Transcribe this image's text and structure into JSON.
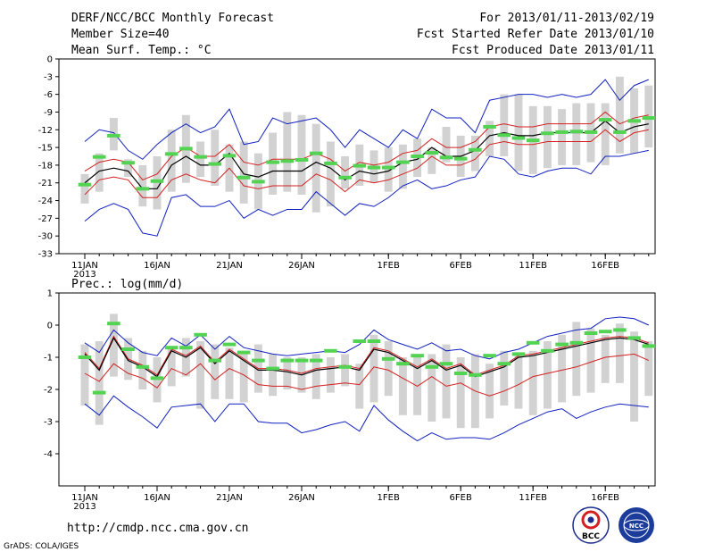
{
  "header": {
    "title": "DERF/NCC/BCC Monthly Forecast",
    "member_size": "Member Size=40",
    "period": "For 2013/01/11-2013/02/19",
    "start_date": "Fcst Started Refer Date 2013/01/10",
    "produced_date": "Fcst Produced Date 2013/01/11"
  },
  "footer": {
    "url": "http://cmdp.ncc.cma.gov.cn",
    "grads": "GrADS: COLA/IGES",
    "logo_bcc": "BCC",
    "logo_ncc": "NCC"
  },
  "colors": {
    "box": "#d2d2d2",
    "observed": "#52d452",
    "ensemble_mean": "#000000",
    "spread": "#d42020",
    "extreme": "#1020c0"
  },
  "chart_data": [
    {
      "type": "line",
      "title": "Mean Surf. Temp.: °C",
      "ylim": [
        -33,
        0
      ],
      "yticks": [
        "0",
        "-3",
        "-6",
        "-9",
        "-12",
        "-15",
        "-18",
        "-21",
        "-24",
        "-27",
        "-30",
        "-33"
      ],
      "ytick_values": [
        0,
        -3,
        -6,
        -9,
        -12,
        -15,
        -18,
        -21,
        -24,
        -27,
        -30,
        -33
      ],
      "xlabel_ticks": [
        {
          "day": 0,
          "label": "11JAN"
        },
        {
          "day": 5,
          "label": "16JAN"
        },
        {
          "day": 10,
          "label": "21JAN"
        },
        {
          "day": 15,
          "label": "26JAN"
        },
        {
          "day": 21,
          "label": "1FEB"
        },
        {
          "day": 26,
          "label": "6FEB"
        },
        {
          "day": 31,
          "label": "11FEB"
        },
        {
          "day": 36,
          "label": "16FEB"
        }
      ],
      "year_label": "2013",
      "days": 40,
      "series": [
        {
          "name": "box_top",
          "values": [
            -19.5,
            -16,
            -10,
            -17,
            -18,
            -16.5,
            -12,
            -9.5,
            -14,
            -12,
            -14.5,
            -14,
            -16,
            -12.5,
            -9,
            -9.5,
            -11,
            -14,
            -16.5,
            -14.5,
            -15.5,
            -15,
            -14.5,
            -13.5,
            -15,
            -11.5,
            -13,
            -13,
            -10.5,
            -6,
            -6,
            -8,
            -8,
            -8.5,
            -7.5,
            -7.5,
            -7.5,
            -3,
            -5,
            -4.5
          ]
        },
        {
          "name": "box_bottom",
          "values": [
            -24.5,
            -22.5,
            -15.5,
            -20,
            -25,
            -25.5,
            -22.5,
            -21,
            -20,
            -21.5,
            -22.5,
            -24.5,
            -25.5,
            -23,
            -22.5,
            -23,
            -26,
            -25,
            -22,
            -21.5,
            -21,
            -22.5,
            -22,
            -20,
            -19.5,
            -17.5,
            -20,
            -19,
            -16.5,
            -16.5,
            -19,
            -19.5,
            -18.5,
            -18,
            -18,
            -17.5,
            -18,
            -16,
            -16,
            -15
          ]
        },
        {
          "name": "observed",
          "values": [
            -21.3,
            -16.6,
            -13.0,
            -17.6,
            -22.0,
            -20.7,
            -16.1,
            -15.2,
            -16.6,
            -17.8,
            -16.4,
            -20.1,
            -20.8,
            -17.5,
            -17.3,
            -17.1,
            -16.0,
            -17.7,
            -20.1,
            -18.1,
            -18.4,
            -18.4,
            -17.5,
            -16.5,
            -15.9,
            -16.7,
            -16.9,
            -15.4,
            -11.5,
            -12.9,
            -13.4,
            -13.8,
            -12.6,
            -12.4,
            -12.3,
            -12.4,
            -10.3,
            -12.4,
            -10.5,
            -10.0
          ]
        },
        {
          "name": "mean",
          "values": [
            -21.0,
            -19.0,
            -18.5,
            -19.0,
            -22.0,
            -22.0,
            -18.0,
            -16.5,
            -18.0,
            -18.0,
            -16.0,
            -19.5,
            -20.0,
            -19.0,
            -19.0,
            -19.0,
            -17.5,
            -18.5,
            -20.5,
            -19.0,
            -19.5,
            -19.0,
            -17.5,
            -17.0,
            -15.0,
            -16.5,
            -16.5,
            -15.5,
            -13.0,
            -12.5,
            -13.0,
            -13.0,
            -12.5,
            -12.5,
            -12.5,
            -12.5,
            -10.5,
            -12.5,
            -11.5,
            -11.0
          ]
        },
        {
          "name": "upper_spread",
          "values": [
            -19.0,
            -17.5,
            -17.0,
            -17.5,
            -20.5,
            -19.5,
            -16.5,
            -15.0,
            -16.5,
            -16.5,
            -14.5,
            -17.5,
            -18.0,
            -17.0,
            -17.0,
            -17.0,
            -16.0,
            -17.0,
            -19.0,
            -17.5,
            -18.0,
            -17.5,
            -16.0,
            -15.5,
            -13.5,
            -15.0,
            -15.0,
            -14.0,
            -11.5,
            -11.0,
            -11.5,
            -11.5,
            -11.0,
            -11.0,
            -11.0,
            -11.0,
            -9.0,
            -11.0,
            -10.0,
            -9.5
          ]
        },
        {
          "name": "lower_spread",
          "values": [
            -23.0,
            -20.5,
            -20.0,
            -20.5,
            -23.5,
            -23.5,
            -20.5,
            -19.5,
            -20.5,
            -21.0,
            -18.5,
            -21.5,
            -22.0,
            -21.5,
            -21.5,
            -21.5,
            -19.5,
            -20.5,
            -22.5,
            -20.5,
            -21.0,
            -20.5,
            -19.5,
            -18.5,
            -16.5,
            -18.0,
            -18.0,
            -17.0,
            -14.5,
            -14.0,
            -14.5,
            -14.5,
            -14.0,
            -14.0,
            -14.0,
            -14.0,
            -12.0,
            -14.0,
            -12.5,
            -12.0
          ]
        },
        {
          "name": "max",
          "values": [
            -14.0,
            -12.0,
            -12.5,
            -15.5,
            -17.0,
            -14.5,
            -12.5,
            -11.0,
            -12.5,
            -11.5,
            -8.5,
            -14.5,
            -14.0,
            -10.0,
            -11.0,
            -10.5,
            -10.0,
            -12.0,
            -15.0,
            -12.0,
            -13.5,
            -15.0,
            -12.0,
            -13.5,
            -8.5,
            -10.0,
            -10.0,
            -12.5,
            -7.0,
            -6.5,
            -6.0,
            -6.0,
            -6.5,
            -6.0,
            -6.5,
            -6.0,
            -3.5,
            -7.0,
            -4.5,
            -3.5
          ]
        },
        {
          "name": "min",
          "values": [
            -27.5,
            -25.5,
            -24.5,
            -25.5,
            -29.5,
            -30.0,
            -23.5,
            -23.0,
            -25.0,
            -25.0,
            -24.0,
            -27.0,
            -25.5,
            -26.5,
            -25.5,
            -25.5,
            -22.5,
            -24.5,
            -26.5,
            -24.5,
            -25.0,
            -23.5,
            -21.5,
            -20.5,
            -22.0,
            -21.5,
            -20.5,
            -20.0,
            -16.5,
            -17.0,
            -19.5,
            -20.0,
            -19.0,
            -18.5,
            -18.5,
            -19.5,
            -16.5,
            -16.5,
            -16.0,
            -15.5
          ]
        }
      ]
    },
    {
      "type": "line",
      "title": "Prec.: log(mm/d)",
      "ylim": [
        -5,
        1
      ],
      "yticks": [
        "1",
        "0",
        "-1",
        "-2",
        "-3",
        "-4"
      ],
      "ytick_values": [
        1,
        0,
        -1,
        -2,
        -3,
        -4
      ],
      "xlabel_ticks": [
        {
          "day": 0,
          "label": "11JAN"
        },
        {
          "day": 5,
          "label": "16JAN"
        },
        {
          "day": 10,
          "label": "21JAN"
        },
        {
          "day": 15,
          "label": "26JAN"
        },
        {
          "day": 21,
          "label": "1FEB"
        },
        {
          "day": 26,
          "label": "6FEB"
        },
        {
          "day": 31,
          "label": "11FEB"
        },
        {
          "day": 36,
          "label": "16FEB"
        }
      ],
      "year_label": "2013",
      "days": 40,
      "series": [
        {
          "name": "box_top",
          "values": [
            -0.6,
            -0.5,
            0.35,
            -0.4,
            -0.8,
            -1.0,
            -0.7,
            -0.4,
            -0.5,
            -0.6,
            -0.7,
            -0.9,
            -0.6,
            -0.9,
            -1.0,
            -1.0,
            -0.9,
            -1.0,
            -0.9,
            -1.2,
            -0.3,
            -0.5,
            -1.0,
            -0.9,
            -0.9,
            -0.6,
            -1.0,
            -0.9,
            -1.2,
            -0.8,
            -0.9,
            -0.8,
            -0.5,
            -0.3,
            0.1,
            -0.1,
            -0.3,
            0.05,
            -0.2,
            -0.5
          ]
        },
        {
          "name": "box_bottom",
          "values": [
            -2.5,
            -3.1,
            -1.6,
            -1.7,
            -2.0,
            -2.4,
            -1.9,
            -1.6,
            -2.6,
            -2.3,
            -2.3,
            -2.4,
            -2.1,
            -2.2,
            -2.0,
            -2.1,
            -2.3,
            -2.1,
            -1.9,
            -2.6,
            -2.4,
            -2.2,
            -2.8,
            -2.8,
            -3.0,
            -2.9,
            -3.2,
            -3.2,
            -2.9,
            -2.5,
            -2.6,
            -2.8,
            -2.6,
            -2.4,
            -2.2,
            -2.1,
            -1.8,
            -1.8,
            -3.0,
            -2.2
          ]
        },
        {
          "name": "observed",
          "values": [
            -1.0,
            -2.1,
            0.05,
            -0.75,
            -1.3,
            -1.65,
            -0.7,
            -0.7,
            -0.3,
            -1.1,
            -0.6,
            -0.85,
            -1.1,
            -1.35,
            -1.1,
            -1.1,
            -1.1,
            -0.8,
            -1.3,
            -0.5,
            -0.5,
            -1.05,
            -1.2,
            -0.95,
            -1.3,
            -1.2,
            -1.5,
            -1.55,
            -0.95,
            -1.2,
            -0.9,
            -0.55,
            -0.8,
            -0.6,
            -0.55,
            -0.25,
            -0.2,
            -0.15,
            -0.4,
            -0.65
          ]
        },
        {
          "name": "mean",
          "values": [
            -0.9,
            -1.4,
            -0.4,
            -1.1,
            -1.3,
            -1.6,
            -0.8,
            -1.0,
            -0.7,
            -1.2,
            -0.8,
            -1.1,
            -1.4,
            -1.4,
            -1.45,
            -1.55,
            -1.4,
            -1.35,
            -1.3,
            -1.4,
            -0.75,
            -0.85,
            -1.1,
            -1.35,
            -1.1,
            -1.4,
            -1.25,
            -1.6,
            -1.45,
            -1.3,
            -1.0,
            -0.95,
            -0.85,
            -0.75,
            -0.65,
            -0.55,
            -0.45,
            -0.4,
            -0.45,
            -0.6
          ]
        },
        {
          "name": "upper_spread",
          "values": [
            -0.85,
            -1.35,
            -0.35,
            -1.05,
            -1.25,
            -1.55,
            -0.75,
            -0.95,
            -0.65,
            -1.15,
            -0.75,
            -1.05,
            -1.35,
            -1.35,
            -1.4,
            -1.5,
            -1.35,
            -1.3,
            -1.25,
            -1.35,
            -0.7,
            -0.8,
            -1.05,
            -1.3,
            -1.05,
            -1.35,
            -1.2,
            -1.55,
            -1.4,
            -1.25,
            -0.95,
            -0.9,
            -0.8,
            -0.7,
            -0.6,
            -0.5,
            -0.4,
            -0.35,
            -0.4,
            -0.55
          ]
        },
        {
          "name": "lower_spread",
          "values": [
            -1.5,
            -1.75,
            -1.2,
            -1.5,
            -1.65,
            -1.95,
            -1.35,
            -1.55,
            -1.2,
            -1.7,
            -1.35,
            -1.55,
            -1.85,
            -1.9,
            -1.9,
            -2.0,
            -1.9,
            -1.85,
            -1.8,
            -1.85,
            -1.3,
            -1.4,
            -1.65,
            -1.9,
            -1.6,
            -1.9,
            -1.8,
            -2.05,
            -2.2,
            -2.05,
            -1.85,
            -1.6,
            -1.5,
            -1.4,
            -1.3,
            -1.15,
            -1.0,
            -0.95,
            -0.9,
            -1.1
          ]
        },
        {
          "name": "max",
          "values": [
            -0.55,
            -0.85,
            -0.15,
            -0.55,
            -0.85,
            -0.95,
            -0.4,
            -0.65,
            -0.3,
            -0.75,
            -0.35,
            -0.7,
            -0.8,
            -0.9,
            -0.95,
            -0.9,
            -0.85,
            -0.8,
            -0.85,
            -0.6,
            -0.15,
            -0.45,
            -0.6,
            -0.75,
            -0.55,
            -0.8,
            -0.75,
            -0.95,
            -1.05,
            -0.85,
            -0.75,
            -0.55,
            -0.35,
            -0.25,
            -0.15,
            -0.1,
            0.2,
            0.25,
            0.2,
            0.0
          ]
        },
        {
          "name": "min",
          "values": [
            -2.45,
            -2.8,
            -2.2,
            -2.55,
            -2.85,
            -3.2,
            -2.55,
            -2.5,
            -2.45,
            -3.0,
            -2.45,
            -2.45,
            -3.0,
            -3.05,
            -3.05,
            -3.35,
            -3.25,
            -3.1,
            -3.0,
            -3.3,
            -2.5,
            -2.95,
            -3.3,
            -3.6,
            -3.35,
            -3.55,
            -3.5,
            -3.5,
            -3.55,
            -3.35,
            -3.1,
            -2.9,
            -2.7,
            -2.6,
            -2.9,
            -2.7,
            -2.55,
            -2.45,
            -2.5,
            -2.55
          ]
        }
      ]
    }
  ]
}
